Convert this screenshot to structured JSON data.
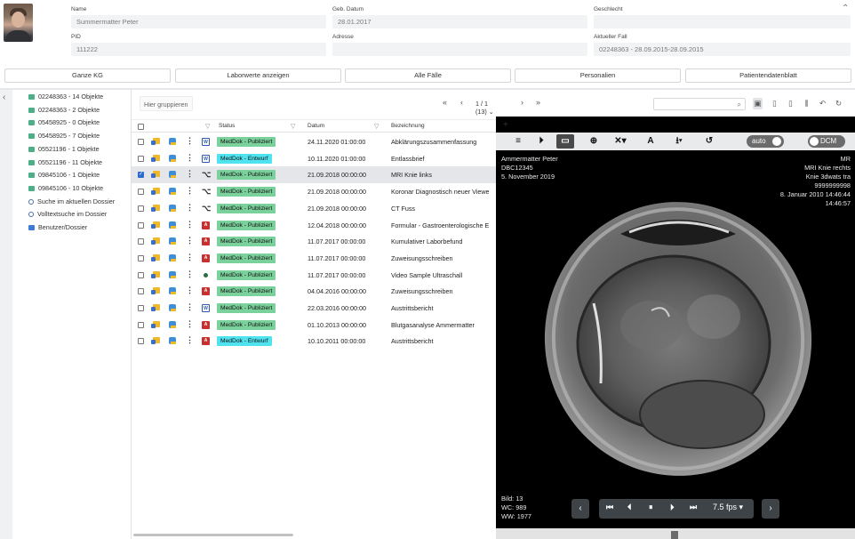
{
  "patient": {
    "name_label": "Name",
    "name_value": "Summermatter Peter",
    "dob_label": "Geb. Datum",
    "dob_value": "28.01.2017",
    "gender_label": "Geschlecht",
    "gender_value": "",
    "pid_label": "PID",
    "pid_value": "111222",
    "address_label": "Adresse",
    "address_value": "",
    "case_label": "Aktueller Fall",
    "case_value": "02248363 - 28.09.2015-28.09.2015"
  },
  "toolbar": {
    "kg": "Ganze KG",
    "labs": "Laborwerte anzeigen",
    "cases": "Alle Fälle",
    "staff": "Personalien",
    "sheet": "Patientendatenblatt"
  },
  "tree": [
    {
      "label": "02248363 - 14 Objekte",
      "icon": "folder-green-icon"
    },
    {
      "label": "02248363 - 2 Objekte",
      "icon": "folder-green-icon"
    },
    {
      "label": "05458925 - 0 Objekte",
      "icon": "folder-green-icon"
    },
    {
      "label": "05458925 - 7 Objekte",
      "icon": "folder-green-icon"
    },
    {
      "label": "05521196 - 1 Objekte",
      "icon": "folder-green-icon"
    },
    {
      "label": "05521196 - 11 Objekte",
      "icon": "folder-green-icon"
    },
    {
      "label": "09845106 - 1 Objekte",
      "icon": "folder-green-icon"
    },
    {
      "label": "09845106 - 10 Objekte",
      "icon": "folder-green-icon"
    },
    {
      "label": "Suche im aktuellen Dossier",
      "icon": "search-icon"
    },
    {
      "label": "Volltextsuche im Dossier",
      "icon": "search-icon"
    },
    {
      "label": "Benutzer/Dossier",
      "icon": "folder-blue-icon"
    }
  ],
  "docs": {
    "group_placeholder": "Hier gruppieren",
    "page_info": "1 / 1 (13)",
    "columns": {
      "status": "Status",
      "date": "Datum",
      "desc": "Bezeichnung"
    },
    "rows": [
      {
        "type": "W",
        "status": "MedDok - Publiziert",
        "draft": false,
        "date": "24.11.2020 01:00:00",
        "desc": "Abklärungszusammenfassung",
        "selected": false
      },
      {
        "type": "W",
        "status": "MedDok - Entwurf",
        "draft": true,
        "date": "10.11.2020 01:00:00",
        "desc": "Entlassbrief",
        "selected": false
      },
      {
        "type": "D",
        "status": "MedDok - Publiziert",
        "draft": false,
        "date": "21.09.2018 00:00:00",
        "desc": "MRI Knie links",
        "selected": true
      },
      {
        "type": "D",
        "status": "MedDok - Publiziert",
        "draft": false,
        "date": "21.09.2018 00:00:00",
        "desc": "Koronar Diagnostisch neuer Viewe",
        "selected": false
      },
      {
        "type": "D",
        "status": "MedDok - Publiziert",
        "draft": false,
        "date": "21.09.2018 00:00:00",
        "desc": "CT Fuss",
        "selected": false
      },
      {
        "type": "P",
        "status": "MedDok - Publiziert",
        "draft": false,
        "date": "12.04.2018 00:00:00",
        "desc": "Formular - Gastroenterologische E",
        "selected": false
      },
      {
        "type": "P",
        "status": "MedDok - Publiziert",
        "draft": false,
        "date": "11.07.2017 00:00:00",
        "desc": "Kumulativer Laborbefund",
        "selected": false
      },
      {
        "type": "P",
        "status": "MedDok - Publiziert",
        "draft": false,
        "date": "11.07.2017 00:00:00",
        "desc": "Zuweisungsschreiben",
        "selected": false
      },
      {
        "type": "V",
        "status": "MedDok - Publiziert",
        "draft": false,
        "date": "11.07.2017 00:00:00",
        "desc": "Video Sample Ultraschall",
        "selected": false
      },
      {
        "type": "P",
        "status": "MedDok - Publiziert",
        "draft": false,
        "date": "04.04.2016 00:00:00",
        "desc": "Zuweisungsschreiben",
        "selected": false
      },
      {
        "type": "W",
        "status": "MedDok - Publiziert",
        "draft": false,
        "date": "22.03.2016 00:00:00",
        "desc": "Austrittsbericht",
        "selected": false
      },
      {
        "type": "P",
        "status": "MedDok - Publiziert",
        "draft": false,
        "date": "01.10.2013 00:00:00",
        "desc": "Blutgasanalyse Ammermatter",
        "selected": false
      },
      {
        "type": "P",
        "status": "MedDok - Entwurf",
        "draft": true,
        "date": "10.10.2011 00:00:00",
        "desc": "Austrittsbericht",
        "selected": false
      }
    ]
  },
  "viewer": {
    "auto_label": "auto",
    "dcm_label": "DCM",
    "tl1": "Ammermatter Peter",
    "tl2": "DBC12345",
    "tl3": "5. November 2019",
    "tr1": "MR",
    "tr2": "MRI Knie rechts",
    "tr3": "Knie 3dwats tra",
    "tr4": "9999999998",
    "tr5": "8. Januar 2010 14:46:44",
    "tr6": "14:46:57",
    "bl1": "Bild: 13",
    "bl2": "WC: 989",
    "bl3": "WW: 1977",
    "fps": "7.5 fps"
  },
  "colors": {
    "published": "#7bd19b",
    "draft": "#4fe3ef",
    "viewer_bg": "#000000",
    "cine_bar": "#3e4347"
  }
}
